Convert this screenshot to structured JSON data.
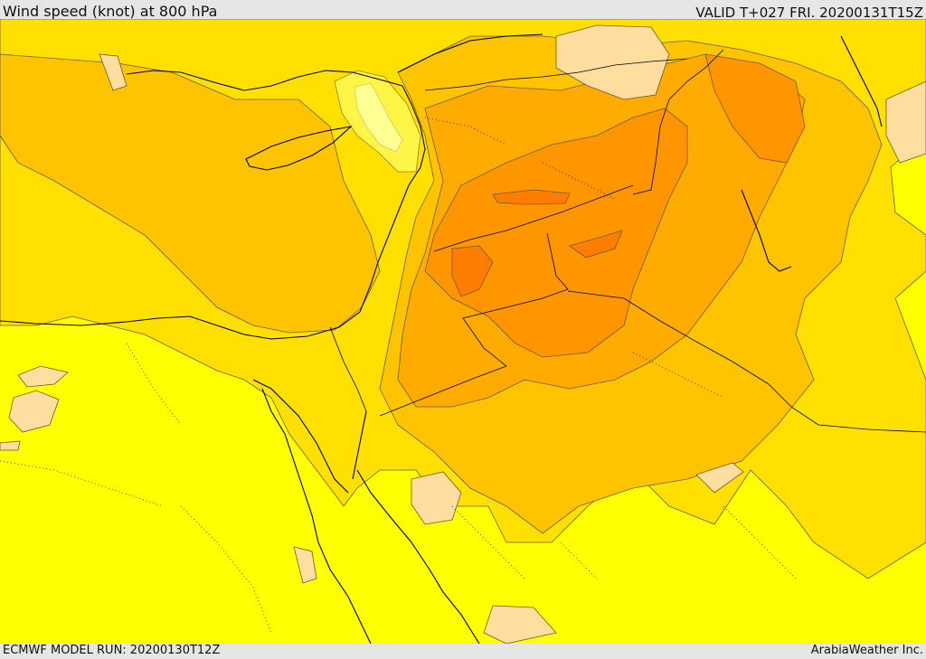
{
  "header": {
    "title": "Wind speed (knot) at 800 hPa",
    "valid": "VALID T+027 FRI. 20200131T15Z"
  },
  "footer": {
    "model_run": "ECMWF MODEL RUN: 20200130T12Z",
    "credit": "ArabiaWeather Inc."
  },
  "palette": {
    "level_0": "#ffff00",
    "level_1": "#ffe000",
    "level_2": "#ffc400",
    "level_3": "#ffab00",
    "level_4": "#ff9600",
    "level_5": "#ff7d00",
    "light_tan": "#ffdea0",
    "calm": "#ffffff",
    "contour": "#6b5a2a",
    "coast": "#000000"
  }
}
